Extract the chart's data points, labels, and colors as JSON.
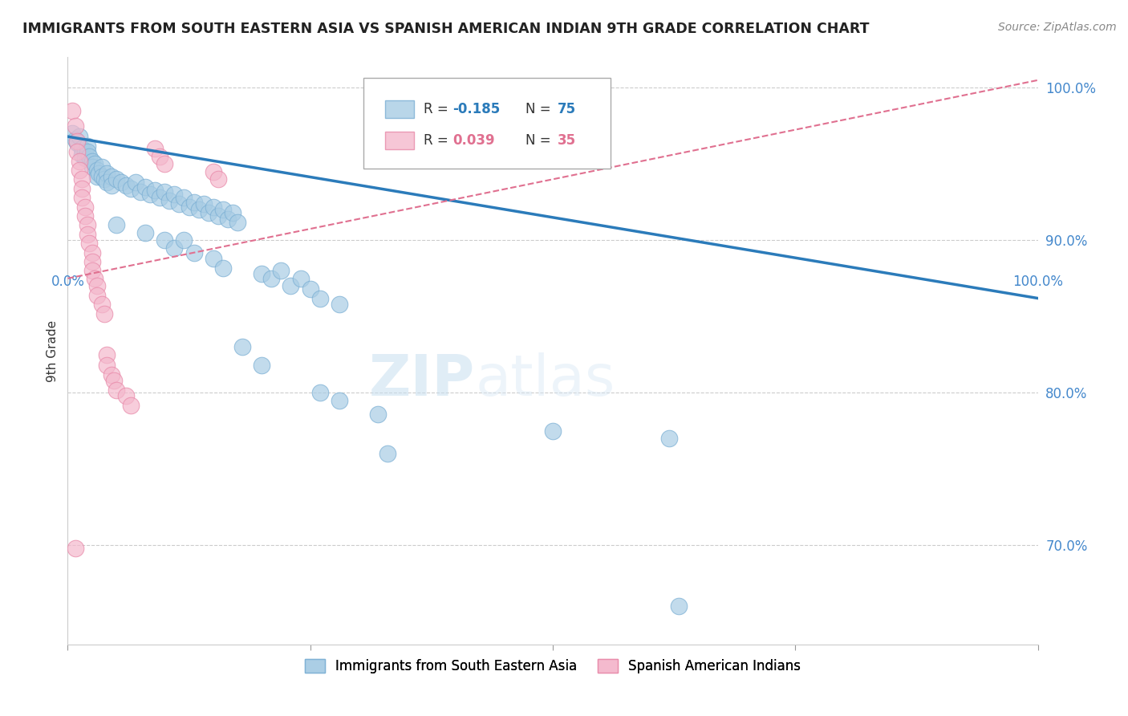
{
  "title": "IMMIGRANTS FROM SOUTH EASTERN ASIA VS SPANISH AMERICAN INDIAN 9TH GRADE CORRELATION CHART",
  "source": "Source: ZipAtlas.com",
  "ylabel": "9th Grade",
  "watermark_zip": "ZIP",
  "watermark_atlas": "atlas",
  "blue_color": "#a8cce4",
  "pink_color": "#f4b8cc",
  "blue_edge_color": "#7bafd4",
  "pink_edge_color": "#e888a8",
  "blue_line_color": "#2b7bba",
  "pink_line_color": "#e07090",
  "r_blue_text_color": "#2b7bba",
  "r_pink_text_color": "#e07090",
  "axis_label_color": "#4488cc",
  "blue_points": [
    [
      0.005,
      0.97
    ],
    [
      0.008,
      0.966
    ],
    [
      0.01,
      0.964
    ],
    [
      0.012,
      0.968
    ],
    [
      0.015,
      0.96
    ],
    [
      0.015,
      0.956
    ],
    [
      0.018,
      0.958
    ],
    [
      0.018,
      0.954
    ],
    [
      0.02,
      0.962
    ],
    [
      0.02,
      0.958
    ],
    [
      0.022,
      0.955
    ],
    [
      0.025,
      0.952
    ],
    [
      0.025,
      0.948
    ],
    [
      0.028,
      0.95
    ],
    [
      0.03,
      0.946
    ],
    [
      0.03,
      0.942
    ],
    [
      0.032,
      0.944
    ],
    [
      0.035,
      0.948
    ],
    [
      0.035,
      0.942
    ],
    [
      0.038,
      0.94
    ],
    [
      0.04,
      0.944
    ],
    [
      0.04,
      0.938
    ],
    [
      0.045,
      0.942
    ],
    [
      0.045,
      0.936
    ],
    [
      0.05,
      0.94
    ],
    [
      0.055,
      0.938
    ],
    [
      0.06,
      0.936
    ],
    [
      0.065,
      0.934
    ],
    [
      0.07,
      0.938
    ],
    [
      0.075,
      0.932
    ],
    [
      0.08,
      0.935
    ],
    [
      0.085,
      0.93
    ],
    [
      0.09,
      0.933
    ],
    [
      0.095,
      0.928
    ],
    [
      0.1,
      0.932
    ],
    [
      0.105,
      0.926
    ],
    [
      0.11,
      0.93
    ],
    [
      0.115,
      0.924
    ],
    [
      0.12,
      0.928
    ],
    [
      0.125,
      0.922
    ],
    [
      0.13,
      0.925
    ],
    [
      0.135,
      0.92
    ],
    [
      0.14,
      0.924
    ],
    [
      0.145,
      0.918
    ],
    [
      0.15,
      0.922
    ],
    [
      0.155,
      0.916
    ],
    [
      0.16,
      0.92
    ],
    [
      0.165,
      0.914
    ],
    [
      0.17,
      0.918
    ],
    [
      0.175,
      0.912
    ],
    [
      0.05,
      0.91
    ],
    [
      0.08,
      0.905
    ],
    [
      0.1,
      0.9
    ],
    [
      0.11,
      0.895
    ],
    [
      0.12,
      0.9
    ],
    [
      0.13,
      0.892
    ],
    [
      0.15,
      0.888
    ],
    [
      0.16,
      0.882
    ],
    [
      0.2,
      0.878
    ],
    [
      0.21,
      0.875
    ],
    [
      0.22,
      0.88
    ],
    [
      0.23,
      0.87
    ],
    [
      0.24,
      0.875
    ],
    [
      0.25,
      0.868
    ],
    [
      0.26,
      0.862
    ],
    [
      0.28,
      0.858
    ],
    [
      0.18,
      0.83
    ],
    [
      0.2,
      0.818
    ],
    [
      0.26,
      0.8
    ],
    [
      0.28,
      0.795
    ],
    [
      0.32,
      0.786
    ],
    [
      0.33,
      0.76
    ],
    [
      0.5,
      0.775
    ],
    [
      0.62,
      0.77
    ],
    [
      0.63,
      0.66
    ]
  ],
  "pink_points": [
    [
      0.005,
      0.985
    ],
    [
      0.008,
      0.975
    ],
    [
      0.01,
      0.965
    ],
    [
      0.01,
      0.958
    ],
    [
      0.012,
      0.952
    ],
    [
      0.012,
      0.946
    ],
    [
      0.015,
      0.94
    ],
    [
      0.015,
      0.934
    ],
    [
      0.015,
      0.928
    ],
    [
      0.018,
      0.922
    ],
    [
      0.018,
      0.916
    ],
    [
      0.02,
      0.91
    ],
    [
      0.02,
      0.904
    ],
    [
      0.022,
      0.898
    ],
    [
      0.025,
      0.892
    ],
    [
      0.025,
      0.886
    ],
    [
      0.025,
      0.88
    ],
    [
      0.028,
      0.875
    ],
    [
      0.03,
      0.87
    ],
    [
      0.03,
      0.864
    ],
    [
      0.035,
      0.858
    ],
    [
      0.038,
      0.852
    ],
    [
      0.04,
      0.825
    ],
    [
      0.04,
      0.818
    ],
    [
      0.045,
      0.812
    ],
    [
      0.048,
      0.808
    ],
    [
      0.05,
      0.802
    ],
    [
      0.06,
      0.798
    ],
    [
      0.065,
      0.792
    ],
    [
      0.008,
      0.698
    ],
    [
      0.09,
      0.96
    ],
    [
      0.095,
      0.955
    ],
    [
      0.1,
      0.95
    ],
    [
      0.15,
      0.945
    ],
    [
      0.155,
      0.94
    ]
  ],
  "xlim": [
    0.0,
    1.0
  ],
  "ylim": [
    0.635,
    1.02
  ],
  "y_ticks": [
    0.7,
    0.8,
    0.9,
    1.0
  ],
  "y_tick_labels": [
    "70.0%",
    "80.0%",
    "90.0%",
    "100.0%"
  ],
  "blue_line_y_start": 0.968,
  "blue_line_y_end": 0.862,
  "pink_line_y_start": 0.875,
  "pink_line_y_end": 1.005
}
